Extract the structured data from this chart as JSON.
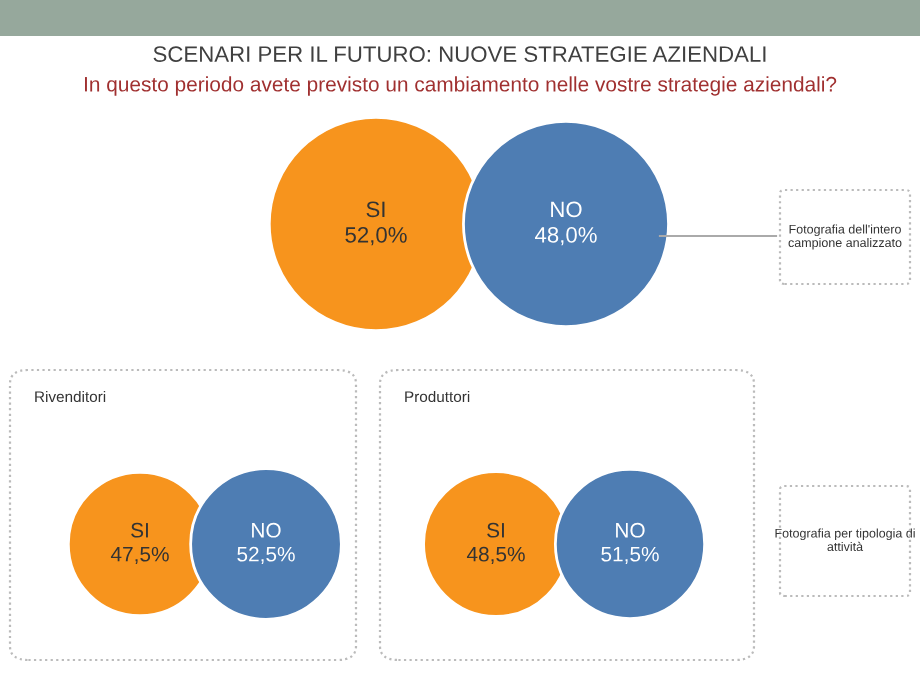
{
  "chart_data": [
    {
      "type": "other",
      "title": "SCENARI PER IL FUTURO: NUOVE STRATEGIE AZIENDALI",
      "subtitle": "In questo periodo avete previsto un cambiamento nelle vostre strategie aziendali?",
      "categories": [
        "SI",
        "NO"
      ],
      "values": [
        52.0,
        48.0
      ],
      "value_labels": [
        "52,0%",
        "48,0%"
      ],
      "colors": [
        "#f7941d",
        "#4e7db3"
      ],
      "annotations": [
        "Fotografia dell'intero campione analizzato"
      ]
    },
    {
      "type": "other",
      "title": "Rivenditori",
      "categories": [
        "SI",
        "NO"
      ],
      "values": [
        47.5,
        52.5
      ],
      "value_labels": [
        "47,5%",
        "52,5%"
      ],
      "colors": [
        "#f7941d",
        "#4e7db3"
      ]
    },
    {
      "type": "other",
      "title": "Produttori",
      "categories": [
        "SI",
        "NO"
      ],
      "values": [
        48.5,
        51.5
      ],
      "value_labels": [
        "48,5%",
        "51,5%"
      ],
      "colors": [
        "#f7941d",
        "#4e7db3"
      ],
      "annotations": [
        "Fotografia per tipologia di attività"
      ]
    }
  ]
}
